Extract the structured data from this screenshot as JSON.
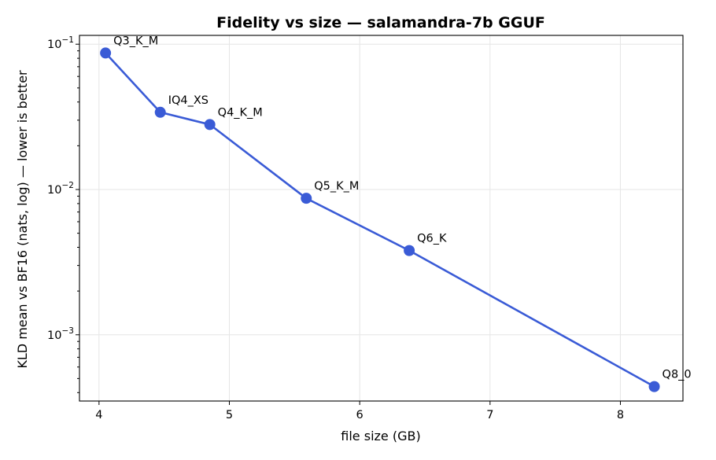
{
  "chart_data": {
    "type": "line",
    "title": "Fidelity vs size — salamandra-7b GGUF",
    "xlabel": "file size (GB)",
    "ylabel": "KLD mean vs BF16 (nats, log) — lower is better",
    "xlim": [
      3.85,
      8.48
    ],
    "ylim": [
      0.00035,
      0.115
    ],
    "yscale": "log",
    "grid": true,
    "x_ticks": [
      4,
      5,
      6,
      7,
      8
    ],
    "y_ticks": [
      {
        "value": 0.1,
        "base": "10",
        "exp": "−1"
      },
      {
        "value": 0.01,
        "base": "10",
        "exp": "−2"
      },
      {
        "value": 0.001,
        "base": "10",
        "exp": "−3"
      }
    ],
    "color": "#3a5bd6",
    "series": [
      {
        "points": [
          {
            "label": "Q3_K_M",
            "x": 4.05,
            "y": 0.087
          },
          {
            "label": "IQ4_XS",
            "x": 4.47,
            "y": 0.034
          },
          {
            "label": "Q4_K_M",
            "x": 4.85,
            "y": 0.028
          },
          {
            "label": "Q5_K_M",
            "x": 5.59,
            "y": 0.0087
          },
          {
            "label": "Q6_K",
            "x": 6.38,
            "y": 0.0038
          },
          {
            "label": "Q8_0",
            "x": 8.26,
            "y": 0.00044
          }
        ]
      }
    ]
  }
}
